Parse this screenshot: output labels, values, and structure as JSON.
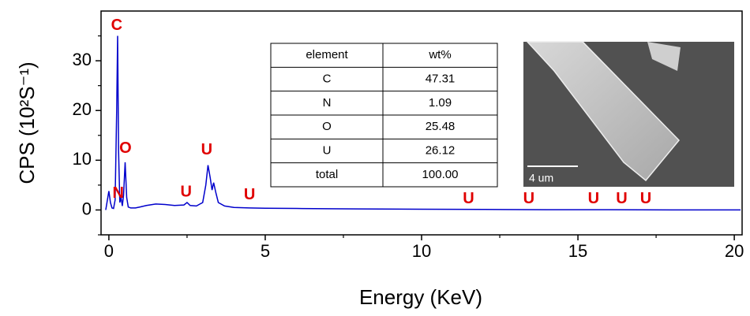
{
  "chart_data": {
    "type": "line",
    "xlabel": "Energy (KeV)",
    "ylabel": "CPS (10²S⁻¹)",
    "xlim": [
      -0.25,
      20.25
    ],
    "ylim": [
      -5,
      40
    ],
    "xticks": [
      0,
      5,
      10,
      15,
      20
    ],
    "yticks": [
      0,
      10,
      20,
      30
    ],
    "xminorticks": [
      2.5,
      7.5,
      12.5,
      17.5
    ],
    "yminorticks": [
      -5,
      5,
      15,
      25,
      35
    ],
    "x": [
      -0.1,
      0,
      0.05,
      0.1,
      0.15,
      0.2,
      0.25,
      0.28,
      0.31,
      0.35,
      0.39,
      0.43,
      0.47,
      0.52,
      0.57,
      0.62,
      0.7,
      0.85,
      1.0,
      1.2,
      1.5,
      1.8,
      2.1,
      2.4,
      2.5,
      2.6,
      2.8,
      3.0,
      3.1,
      3.17,
      3.24,
      3.3,
      3.35,
      3.42,
      3.5,
      3.7,
      4.0,
      4.5,
      5,
      6,
      7,
      8,
      10,
      12,
      14,
      16,
      18,
      20.2
    ],
    "series": [
      {
        "color": "#0000cc",
        "values": [
          0,
          3.8,
          1.5,
          0.4,
          0.3,
          2,
          20,
          35,
          12,
          1.5,
          2.5,
          0.8,
          3,
          9.6,
          2.5,
          0.6,
          0.4,
          0.4,
          0.6,
          0.9,
          1.2,
          1.1,
          0.9,
          1.0,
          1.5,
          0.9,
          0.8,
          1.5,
          5,
          9,
          6.5,
          4,
          5.5,
          3.5,
          1.5,
          0.8,
          0.5,
          0.4,
          0.35,
          0.3,
          0.25,
          0.2,
          0.15,
          0.1,
          0.05,
          0.05,
          0.02,
          0.02
        ]
      }
    ],
    "annotation_color": "#e00000",
    "annotations": [
      {
        "text": "C",
        "x": 0.25,
        "y": 37
      },
      {
        "text": "N",
        "x": 0.3,
        "y": 3.3
      },
      {
        "text": "O",
        "x": 0.53,
        "y": 12.3
      },
      {
        "text": "U",
        "x": 3.13,
        "y": 12
      },
      {
        "text": "U",
        "x": 2.47,
        "y": 3.5
      },
      {
        "text": "U",
        "x": 4.5,
        "y": 3
      },
      {
        "text": "U",
        "x": 11.5,
        "y": 2.2
      },
      {
        "text": "U",
        "x": 13.43,
        "y": 2.2
      },
      {
        "text": "U",
        "x": 15.5,
        "y": 2.2
      },
      {
        "text": "U",
        "x": 16.4,
        "y": 2.2
      },
      {
        "text": "U",
        "x": 17.17,
        "y": 2.2
      }
    ],
    "inset_table": {
      "header": [
        "element",
        "wt%"
      ],
      "rows": [
        [
          "C",
          "47.31"
        ],
        [
          "N",
          "1.09"
        ],
        [
          "O",
          "25.48"
        ],
        [
          "U",
          "26.12"
        ],
        [
          "total",
          "100.00"
        ]
      ]
    },
    "inset_image": {
      "scale_bar": "4 um"
    }
  }
}
